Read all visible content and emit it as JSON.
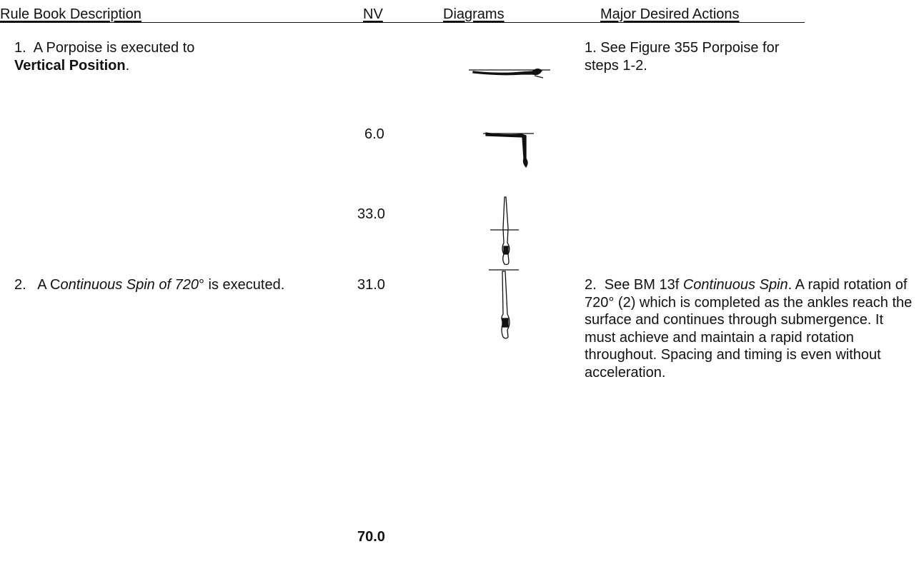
{
  "header": {
    "columns": [
      "Rule Book Description",
      "NV",
      "Diagrams",
      "Major Desired Actions"
    ]
  },
  "rows": [
    {
      "description": [
        "1.  A Porpoise is executed to ",
        "Vertical Position",
        "."
      ],
      "nv": [
        "6.0",
        "33.0"
      ],
      "actions": [
        "1. See Figure 355 Porpoise for steps 1-2."
      ]
    },
    {
      "description": [
        "2.   A C",
        "ontinuous Spin of 720",
        "° is executed."
      ],
      "nv": [
        "31.0"
      ],
      "actions": [
        "2.  See BM 13f ",
        "Continuous Spin",
        ". A rapid rotation of 720° (2) which is completed as the ankles reach the surface and continues through submergence. It must achieve and maintain a rapid rotation throughout.  Spacing and timing is even without acceleration."
      ]
    }
  ],
  "total": "70.0"
}
